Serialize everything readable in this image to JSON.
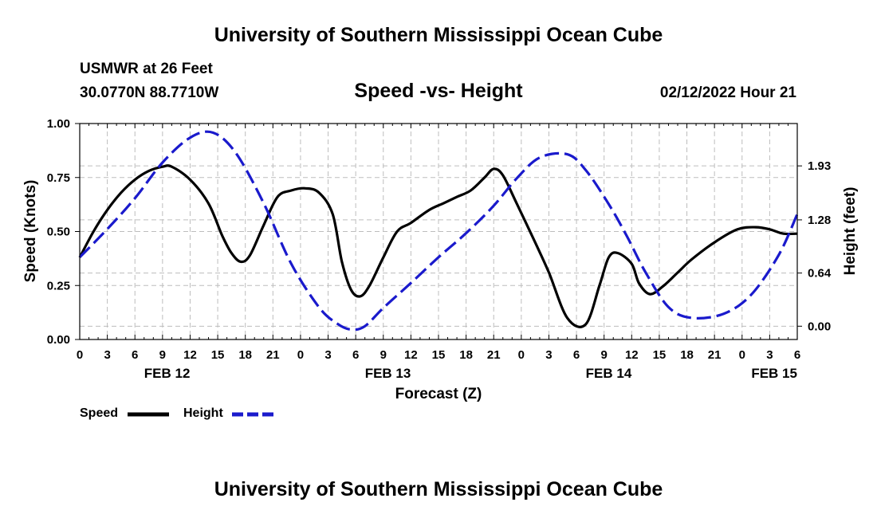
{
  "header": {
    "title": "University of Southern Mississippi Ocean Cube",
    "station": "USMWR at 26 Feet",
    "coords": "30.0770N  88.7710W",
    "subtitle": "Speed -vs- Height",
    "date": "02/12/2022 Hour 21"
  },
  "footer": {
    "title": "University of Southern Mississippi Ocean Cube"
  },
  "legend": {
    "speed_label": "Speed",
    "height_label": "Height"
  },
  "colors": {
    "speed": "#000000",
    "height": "#1a1acc",
    "grid": "#bdbdbd"
  },
  "chart_data": {
    "type": "line",
    "title": "Speed -vs- Height",
    "xlabel": "Forecast (Z)",
    "ylabel": "Speed (Knots)",
    "y2label": "Height (feet)",
    "x_units": "hours since FEB 12 00Z",
    "xlim": [
      0,
      78
    ],
    "ylim": [
      0,
      1.0
    ],
    "y2lim": [
      -0.16,
      2.44
    ],
    "x_ticks": [
      0,
      3,
      6,
      9,
      12,
      15,
      18,
      21,
      24,
      27,
      30,
      33,
      36,
      39,
      42,
      45,
      48,
      51,
      54,
      57,
      60,
      63,
      66,
      69,
      72,
      75,
      78
    ],
    "x_tick_labels": [
      "0",
      "3",
      "6",
      "9",
      "12",
      "15",
      "18",
      "21",
      "0",
      "3",
      "6",
      "9",
      "12",
      "15",
      "18",
      "21",
      "0",
      "3",
      "6",
      "9",
      "12",
      "15",
      "18",
      "21",
      "0",
      "3",
      "6"
    ],
    "date_labels": [
      {
        "x": 9.5,
        "label": "FEB 12"
      },
      {
        "x": 33.5,
        "label": "FEB 13"
      },
      {
        "x": 57.5,
        "label": "FEB 14"
      },
      {
        "x": 75.5,
        "label": "FEB 15"
      }
    ],
    "y_ticks": [
      0.0,
      0.25,
      0.5,
      0.75,
      1.0
    ],
    "y_tick_labels": [
      "0.00",
      "0.25",
      "0.50",
      "0.75",
      "1.00"
    ],
    "y2_ticks": [
      0.0,
      0.64,
      1.28,
      1.93
    ],
    "y2_tick_labels": [
      "0.00",
      "0.64",
      "1.28",
      "1.93"
    ],
    "series": [
      {
        "name": "Speed",
        "axis": "left",
        "style": "solid",
        "x": [
          0,
          1.5,
          3,
          4.5,
          6,
          7.5,
          9,
          10,
          12,
          14,
          15.5,
          16.5,
          17.5,
          18.5,
          20,
          21.5,
          23,
          24.5,
          26,
          27.5,
          28.5,
          29.5,
          30.5,
          31.5,
          33,
          34.5,
          36,
          38,
          39.5,
          41,
          42.5,
          44,
          45,
          46,
          47.5,
          49.5,
          51,
          53,
          55,
          56.5,
          57.5,
          58.5,
          60,
          60.8,
          62,
          63.5,
          65,
          66.5,
          69,
          71.5,
          73.5,
          75,
          76.5,
          78
        ],
        "values": [
          0.38,
          0.5,
          0.6,
          0.68,
          0.74,
          0.78,
          0.8,
          0.8,
          0.74,
          0.63,
          0.48,
          0.4,
          0.36,
          0.39,
          0.53,
          0.66,
          0.69,
          0.7,
          0.68,
          0.58,
          0.36,
          0.23,
          0.2,
          0.25,
          0.38,
          0.5,
          0.54,
          0.6,
          0.63,
          0.66,
          0.69,
          0.75,
          0.79,
          0.76,
          0.63,
          0.45,
          0.31,
          0.1,
          0.07,
          0.25,
          0.38,
          0.4,
          0.35,
          0.26,
          0.21,
          0.25,
          0.31,
          0.37,
          0.45,
          0.51,
          0.52,
          0.51,
          0.49,
          0.49
        ]
      },
      {
        "name": "Height",
        "axis": "right",
        "style": "dashed",
        "x": [
          0,
          3,
          6,
          9,
          12,
          14.5,
          17,
          20,
          23,
          26,
          28,
          29.5,
          31,
          33,
          36,
          39,
          42,
          45,
          47.5,
          50,
          53,
          55,
          57.5,
          59.5,
          61.5,
          64,
          66.5,
          70,
          73,
          76,
          78
        ],
        "values": [
          0.83,
          1.17,
          1.54,
          1.97,
          2.27,
          2.33,
          2.08,
          1.48,
          0.75,
          0.23,
          0.03,
          -0.04,
          0.0,
          0.22,
          0.52,
          0.83,
          1.12,
          1.45,
          1.78,
          2.03,
          2.07,
          1.88,
          1.47,
          1.08,
          0.65,
          0.23,
          0.1,
          0.15,
          0.38,
          0.86,
          1.35
        ]
      }
    ]
  }
}
